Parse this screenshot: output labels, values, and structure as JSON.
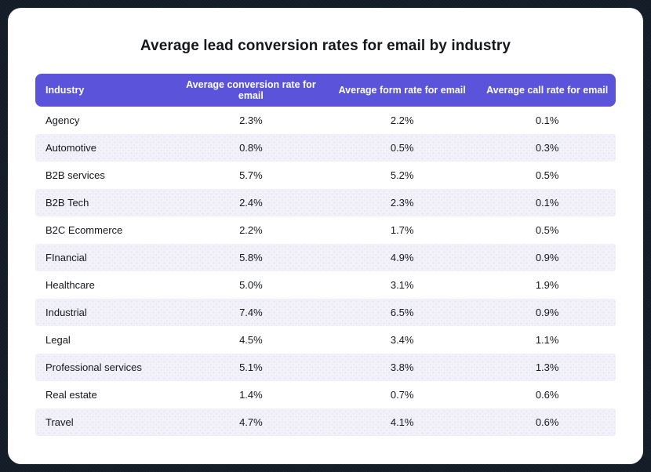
{
  "chart_data": {
    "type": "table",
    "title": "Average lead conversion rates for email by industry",
    "columns": [
      "Industry",
      "Average conversion rate for email",
      "Average form rate for email",
      "Average call rate for email"
    ],
    "rows": [
      [
        "Agency",
        "2.3%",
        "2.2%",
        "0.1%"
      ],
      [
        "Automotive",
        "0.8%",
        "0.5%",
        "0.3%"
      ],
      [
        "B2B services",
        "5.7%",
        "5.2%",
        "0.5%"
      ],
      [
        "B2B Tech",
        "2.4%",
        "2.3%",
        "0.1%"
      ],
      [
        "B2C Ecommerce",
        "2.2%",
        "1.7%",
        "0.5%"
      ],
      [
        "FInancial",
        "5.8%",
        "4.9%",
        "0.9%"
      ],
      [
        "Healthcare",
        "5.0%",
        "3.1%",
        "1.9%"
      ],
      [
        "Industrial",
        "7.4%",
        "6.5%",
        "0.9%"
      ],
      [
        "Legal",
        "4.5%",
        "3.4%",
        "1.1%"
      ],
      [
        "Professional services",
        "5.1%",
        "3.8%",
        "1.3%"
      ],
      [
        "Real estate",
        "1.4%",
        "0.7%",
        "0.6%"
      ],
      [
        "Travel",
        "4.7%",
        "4.1%",
        "0.6%"
      ]
    ],
    "legend": "none",
    "grid": "off"
  },
  "colors": {
    "frame_background": "#131c27",
    "card_background": "#ffffff",
    "header_background": "#5b54da",
    "stripe_background": "#f2f1f9",
    "header_text": "#ffffff",
    "body_text": "#16171d"
  }
}
